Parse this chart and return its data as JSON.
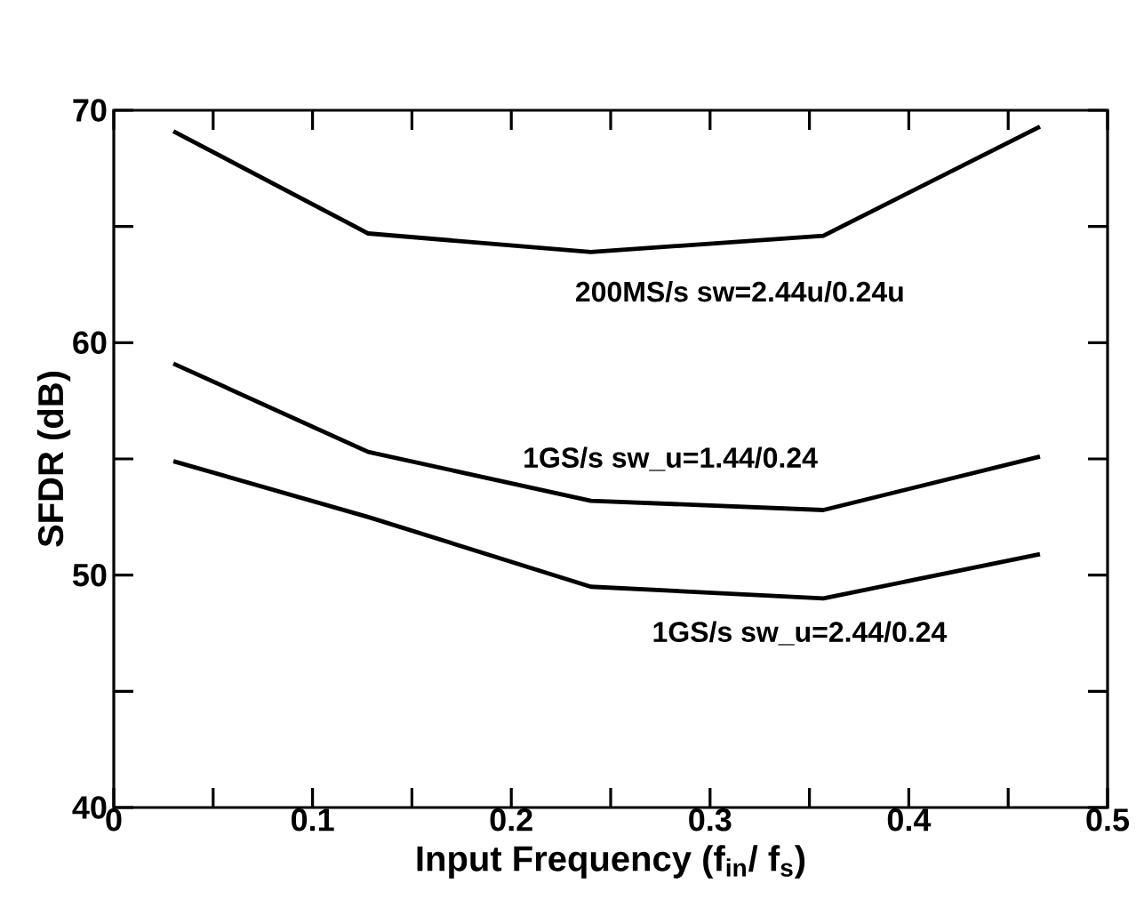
{
  "chart_data": {
    "type": "line",
    "xlabel": "Input Frequency (f$_{in}$/ f$_{s}$)",
    "ylabel": "SFDR (dB)",
    "xlim": [
      0,
      0.5
    ],
    "ylim": [
      40,
      70
    ],
    "xticks": [
      0,
      {
        "value": 0.05,
        "label": null
      },
      0.1,
      {
        "value": 0.15,
        "label": null
      },
      0.2,
      {
        "value": 0.25,
        "label": null
      },
      0.3,
      {
        "value": 0.35,
        "label": null
      },
      0.4,
      {
        "value": 0.45,
        "label": null
      },
      0.5
    ],
    "yticks": [
      40,
      {
        "value": 45,
        "label": null
      },
      50,
      {
        "value": 55,
        "label": null
      },
      60,
      {
        "value": 65,
        "label": null
      },
      70
    ],
    "x": [
      0.03,
      0.128,
      0.24,
      0.357,
      0.466
    ],
    "series": [
      {
        "name": "200MS/s sw=2.44u/0.24u",
        "color": "#000000",
        "values": [
          69.1,
          64.7,
          63.9,
          64.6,
          69.3
        ]
      },
      {
        "name": "1GS/s sw_u=1.44/0.24",
        "color": "#000000",
        "values": [
          59.1,
          55.3,
          53.2,
          52.8,
          55.1
        ]
      },
      {
        "name": "1GS/s sw_u=2.44/0.24",
        "color": "#000000",
        "values": [
          54.9,
          52.5,
          49.5,
          49.0,
          50.9
        ]
      }
    ]
  }
}
